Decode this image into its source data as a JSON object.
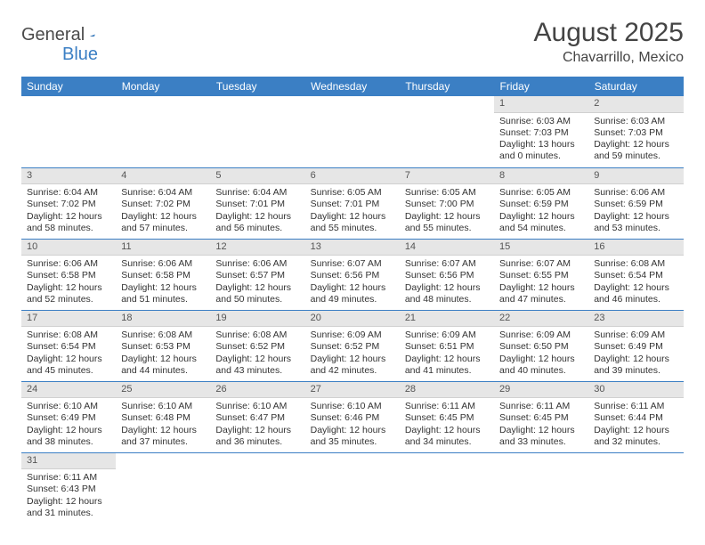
{
  "logo": {
    "part1": "General",
    "part2": "Blue"
  },
  "title": "August 2025",
  "location": "Chavarrillo, Mexico",
  "colors": {
    "header_bg": "#3b7fc4",
    "header_text": "#ffffff",
    "daynum_bg": "#e6e6e6",
    "border": "#3b7fc4",
    "text": "#333333",
    "logo_gray": "#4a4a4a",
    "logo_blue": "#3b7fc4"
  },
  "weekdays": [
    "Sunday",
    "Monday",
    "Tuesday",
    "Wednesday",
    "Thursday",
    "Friday",
    "Saturday"
  ],
  "weeks": [
    [
      null,
      null,
      null,
      null,
      null,
      {
        "n": "1",
        "sr": "Sunrise: 6:03 AM",
        "ss": "Sunset: 7:03 PM",
        "dl": "Daylight: 13 hours and 0 minutes."
      },
      {
        "n": "2",
        "sr": "Sunrise: 6:03 AM",
        "ss": "Sunset: 7:03 PM",
        "dl": "Daylight: 12 hours and 59 minutes."
      }
    ],
    [
      {
        "n": "3",
        "sr": "Sunrise: 6:04 AM",
        "ss": "Sunset: 7:02 PM",
        "dl": "Daylight: 12 hours and 58 minutes."
      },
      {
        "n": "4",
        "sr": "Sunrise: 6:04 AM",
        "ss": "Sunset: 7:02 PM",
        "dl": "Daylight: 12 hours and 57 minutes."
      },
      {
        "n": "5",
        "sr": "Sunrise: 6:04 AM",
        "ss": "Sunset: 7:01 PM",
        "dl": "Daylight: 12 hours and 56 minutes."
      },
      {
        "n": "6",
        "sr": "Sunrise: 6:05 AM",
        "ss": "Sunset: 7:01 PM",
        "dl": "Daylight: 12 hours and 55 minutes."
      },
      {
        "n": "7",
        "sr": "Sunrise: 6:05 AM",
        "ss": "Sunset: 7:00 PM",
        "dl": "Daylight: 12 hours and 55 minutes."
      },
      {
        "n": "8",
        "sr": "Sunrise: 6:05 AM",
        "ss": "Sunset: 6:59 PM",
        "dl": "Daylight: 12 hours and 54 minutes."
      },
      {
        "n": "9",
        "sr": "Sunrise: 6:06 AM",
        "ss": "Sunset: 6:59 PM",
        "dl": "Daylight: 12 hours and 53 minutes."
      }
    ],
    [
      {
        "n": "10",
        "sr": "Sunrise: 6:06 AM",
        "ss": "Sunset: 6:58 PM",
        "dl": "Daylight: 12 hours and 52 minutes."
      },
      {
        "n": "11",
        "sr": "Sunrise: 6:06 AM",
        "ss": "Sunset: 6:58 PM",
        "dl": "Daylight: 12 hours and 51 minutes."
      },
      {
        "n": "12",
        "sr": "Sunrise: 6:06 AM",
        "ss": "Sunset: 6:57 PM",
        "dl": "Daylight: 12 hours and 50 minutes."
      },
      {
        "n": "13",
        "sr": "Sunrise: 6:07 AM",
        "ss": "Sunset: 6:56 PM",
        "dl": "Daylight: 12 hours and 49 minutes."
      },
      {
        "n": "14",
        "sr": "Sunrise: 6:07 AM",
        "ss": "Sunset: 6:56 PM",
        "dl": "Daylight: 12 hours and 48 minutes."
      },
      {
        "n": "15",
        "sr": "Sunrise: 6:07 AM",
        "ss": "Sunset: 6:55 PM",
        "dl": "Daylight: 12 hours and 47 minutes."
      },
      {
        "n": "16",
        "sr": "Sunrise: 6:08 AM",
        "ss": "Sunset: 6:54 PM",
        "dl": "Daylight: 12 hours and 46 minutes."
      }
    ],
    [
      {
        "n": "17",
        "sr": "Sunrise: 6:08 AM",
        "ss": "Sunset: 6:54 PM",
        "dl": "Daylight: 12 hours and 45 minutes."
      },
      {
        "n": "18",
        "sr": "Sunrise: 6:08 AM",
        "ss": "Sunset: 6:53 PM",
        "dl": "Daylight: 12 hours and 44 minutes."
      },
      {
        "n": "19",
        "sr": "Sunrise: 6:08 AM",
        "ss": "Sunset: 6:52 PM",
        "dl": "Daylight: 12 hours and 43 minutes."
      },
      {
        "n": "20",
        "sr": "Sunrise: 6:09 AM",
        "ss": "Sunset: 6:52 PM",
        "dl": "Daylight: 12 hours and 42 minutes."
      },
      {
        "n": "21",
        "sr": "Sunrise: 6:09 AM",
        "ss": "Sunset: 6:51 PM",
        "dl": "Daylight: 12 hours and 41 minutes."
      },
      {
        "n": "22",
        "sr": "Sunrise: 6:09 AM",
        "ss": "Sunset: 6:50 PM",
        "dl": "Daylight: 12 hours and 40 minutes."
      },
      {
        "n": "23",
        "sr": "Sunrise: 6:09 AM",
        "ss": "Sunset: 6:49 PM",
        "dl": "Daylight: 12 hours and 39 minutes."
      }
    ],
    [
      {
        "n": "24",
        "sr": "Sunrise: 6:10 AM",
        "ss": "Sunset: 6:49 PM",
        "dl": "Daylight: 12 hours and 38 minutes."
      },
      {
        "n": "25",
        "sr": "Sunrise: 6:10 AM",
        "ss": "Sunset: 6:48 PM",
        "dl": "Daylight: 12 hours and 37 minutes."
      },
      {
        "n": "26",
        "sr": "Sunrise: 6:10 AM",
        "ss": "Sunset: 6:47 PM",
        "dl": "Daylight: 12 hours and 36 minutes."
      },
      {
        "n": "27",
        "sr": "Sunrise: 6:10 AM",
        "ss": "Sunset: 6:46 PM",
        "dl": "Daylight: 12 hours and 35 minutes."
      },
      {
        "n": "28",
        "sr": "Sunrise: 6:11 AM",
        "ss": "Sunset: 6:45 PM",
        "dl": "Daylight: 12 hours and 34 minutes."
      },
      {
        "n": "29",
        "sr": "Sunrise: 6:11 AM",
        "ss": "Sunset: 6:45 PM",
        "dl": "Daylight: 12 hours and 33 minutes."
      },
      {
        "n": "30",
        "sr": "Sunrise: 6:11 AM",
        "ss": "Sunset: 6:44 PM",
        "dl": "Daylight: 12 hours and 32 minutes."
      }
    ],
    [
      {
        "n": "31",
        "sr": "Sunrise: 6:11 AM",
        "ss": "Sunset: 6:43 PM",
        "dl": "Daylight: 12 hours and 31 minutes."
      },
      null,
      null,
      null,
      null,
      null,
      null
    ]
  ]
}
